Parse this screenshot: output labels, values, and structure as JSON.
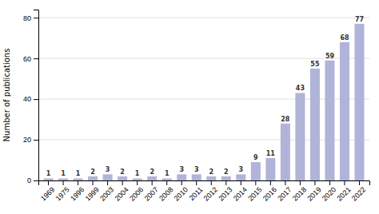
{
  "chart_data": {
    "type": "bar",
    "ylabel": "Number of publications",
    "categories": [
      "1969",
      "1975",
      "1996",
      "1999",
      "2003",
      "2004",
      "2006",
      "2007",
      "2008",
      "2010",
      "2011",
      "2012",
      "2013",
      "2014",
      "2015",
      "2016",
      "2017",
      "2018",
      "2019",
      "2020",
      "2021",
      "2022"
    ],
    "values": [
      1,
      1,
      1,
      2,
      3,
      2,
      1,
      2,
      1,
      3,
      3,
      2,
      2,
      3,
      9,
      11,
      28,
      43,
      55,
      59,
      68,
      77
    ],
    "color": "#b0b4d8",
    "ylim": [
      0,
      84
    ],
    "yticks": [
      0,
      20,
      40,
      60,
      80
    ],
    "grid": true,
    "data_labels": true
  }
}
